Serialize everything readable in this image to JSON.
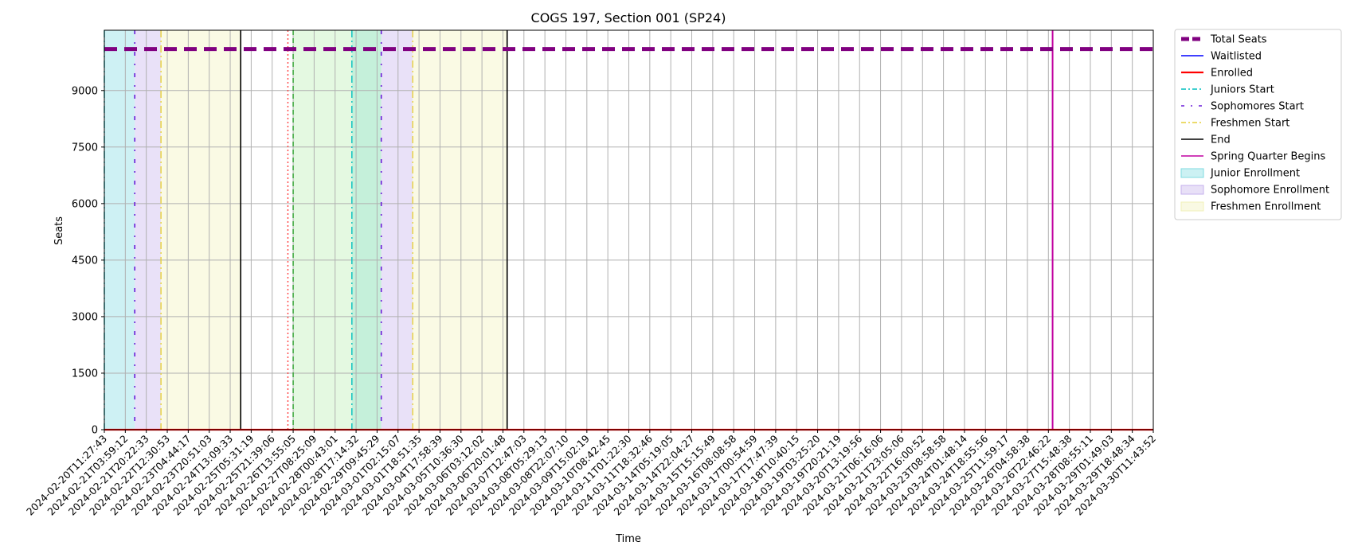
{
  "chart_data": {
    "type": "line",
    "title": "COGS 197, Section 001 (SP24)",
    "xlabel": "Time",
    "ylabel": "Seats",
    "ylim": [
      0,
      10600
    ],
    "yticks": [
      0,
      1500,
      3000,
      4500,
      6000,
      7500,
      9000
    ],
    "grid": true,
    "legend_placement": "outside-top-right",
    "categories": [
      "2024-02-20T11:27:43",
      "2024-02-21T03:59:12",
      "2024-02-21T20:22:33",
      "2024-02-22T12:30:53",
      "2024-02-23T04:44:17",
      "2024-02-23T20:51:03",
      "2024-02-24T13:09:33",
      "2024-02-25T05:31:19",
      "2024-02-25T21:39:06",
      "2024-02-26T13:55:05",
      "2024-02-27T08:25:09",
      "2024-02-28T00:43:01",
      "2024-02-28T17:14:32",
      "2024-02-29T09:45:29",
      "2024-03-01T02:15:07",
      "2024-03-01T18:51:35",
      "2024-03-04T17:58:39",
      "2024-03-05T10:36:30",
      "2024-03-06T03:12:02",
      "2024-03-06T20:01:48",
      "2024-03-07T12:47:03",
      "2024-03-08T05:29:13",
      "2024-03-08T22:07:10",
      "2024-03-09T15:02:19",
      "2024-03-10T08:42:45",
      "2024-03-11T01:22:30",
      "2024-03-11T18:32:46",
      "2024-03-14T05:19:05",
      "2024-03-14T22:04:27",
      "2024-03-15T15:15:49",
      "2024-03-16T08:08:58",
      "2024-03-17T00:54:59",
      "2024-03-17T17:47:39",
      "2024-03-18T10:40:15",
      "2024-03-19T03:25:20",
      "2024-03-19T20:21:19",
      "2024-03-20T13:19:56",
      "2024-03-21T06:16:06",
      "2024-03-21T23:05:06",
      "2024-03-22T16:00:52",
      "2024-03-23T08:58:58",
      "2024-03-24T01:48:14",
      "2024-03-24T18:55:56",
      "2024-03-25T11:59:17",
      "2024-03-26T04:58:38",
      "2024-03-26T22:46:22",
      "2024-03-27T15:48:38",
      "2024-03-28T08:55:11",
      "2024-03-29T01:49:03",
      "2024-03-29T18:48:34",
      "2024-03-30T11:43:52"
    ],
    "series": [
      {
        "name": "Total Seats",
        "color": "#800080",
        "style": "dashed-thick",
        "value": 10100
      },
      {
        "name": "Waitlisted",
        "color": "#0000ff",
        "style": "solid",
        "value": 0
      },
      {
        "name": "Enrolled",
        "color": "#ff0000",
        "style": "solid-thick",
        "value": 0
      }
    ],
    "vlines": [
      {
        "name": "Juniors Start",
        "color": "#00bfbf",
        "style": "dashdot",
        "positions": [
          0,
          11.8
        ]
      },
      {
        "name": "Sophomores Start",
        "color": "#6a1bd8",
        "style": "loose-dashdot",
        "positions": [
          1.45,
          13.2
        ]
      },
      {
        "name": "Freshmen Start",
        "color": "#e6cf3a",
        "style": "dashdot",
        "positions": [
          2.7,
          14.7
        ]
      },
      {
        "name": "End",
        "color": "#000000",
        "style": "solid",
        "positions": [
          6.5,
          19.2
        ]
      },
      {
        "name": "Spring Quarter Begins",
        "color": "#c000a0",
        "style": "solid",
        "positions": [
          45.2
        ]
      },
      {
        "name": "",
        "color": "#ff4040",
        "style": "dotted",
        "positions": [
          8.75
        ]
      },
      {
        "name": "",
        "color": "#2ca02c",
        "style": "dashed",
        "positions": [
          9.0
        ]
      }
    ],
    "spans": [
      {
        "name": "Junior Enrollment",
        "color": "#7fdbe2",
        "ranges": [
          [
            0,
            1.45
          ],
          [
            11.8,
            13.2
          ]
        ]
      },
      {
        "name": "Sophomore Enrollment",
        "color": "#c6b1ec",
        "ranges": [
          [
            1.45,
            2.7
          ],
          [
            13.2,
            14.7
          ]
        ]
      },
      {
        "name": "Freshmen Enrollment",
        "color": "#f1f1b8",
        "ranges": [
          [
            2.7,
            6.5
          ],
          [
            14.7,
            19.2
          ]
        ]
      },
      {
        "name": "",
        "color": "#b7efb0",
        "ranges": [
          [
            9.0,
            13.2
          ]
        ]
      }
    ],
    "legend": [
      {
        "label": "Total Seats",
        "kind": "line",
        "color": "#800080",
        "style": "dashed-thick"
      },
      {
        "label": "Waitlisted",
        "kind": "line",
        "color": "#0000ff",
        "style": "solid"
      },
      {
        "label": "Enrolled",
        "kind": "line",
        "color": "#ff0000",
        "style": "solid-thick"
      },
      {
        "label": "Juniors Start",
        "kind": "line",
        "color": "#00bfbf",
        "style": "dashdot"
      },
      {
        "label": "Sophomores Start",
        "kind": "line",
        "color": "#6a1bd8",
        "style": "loose-dashdot"
      },
      {
        "label": "Freshmen Start",
        "kind": "line",
        "color": "#e6cf3a",
        "style": "dashdot"
      },
      {
        "label": "End",
        "kind": "line",
        "color": "#000000",
        "style": "solid"
      },
      {
        "label": "Spring Quarter Begins",
        "kind": "line",
        "color": "#c000a0",
        "style": "solid"
      },
      {
        "label": "Junior Enrollment",
        "kind": "patch",
        "color": "#7fdbe2"
      },
      {
        "label": "Sophomore Enrollment",
        "kind": "patch",
        "color": "#c6b1ec"
      },
      {
        "label": "Freshmen Enrollment",
        "kind": "patch",
        "color": "#f1f1b8"
      }
    ]
  }
}
